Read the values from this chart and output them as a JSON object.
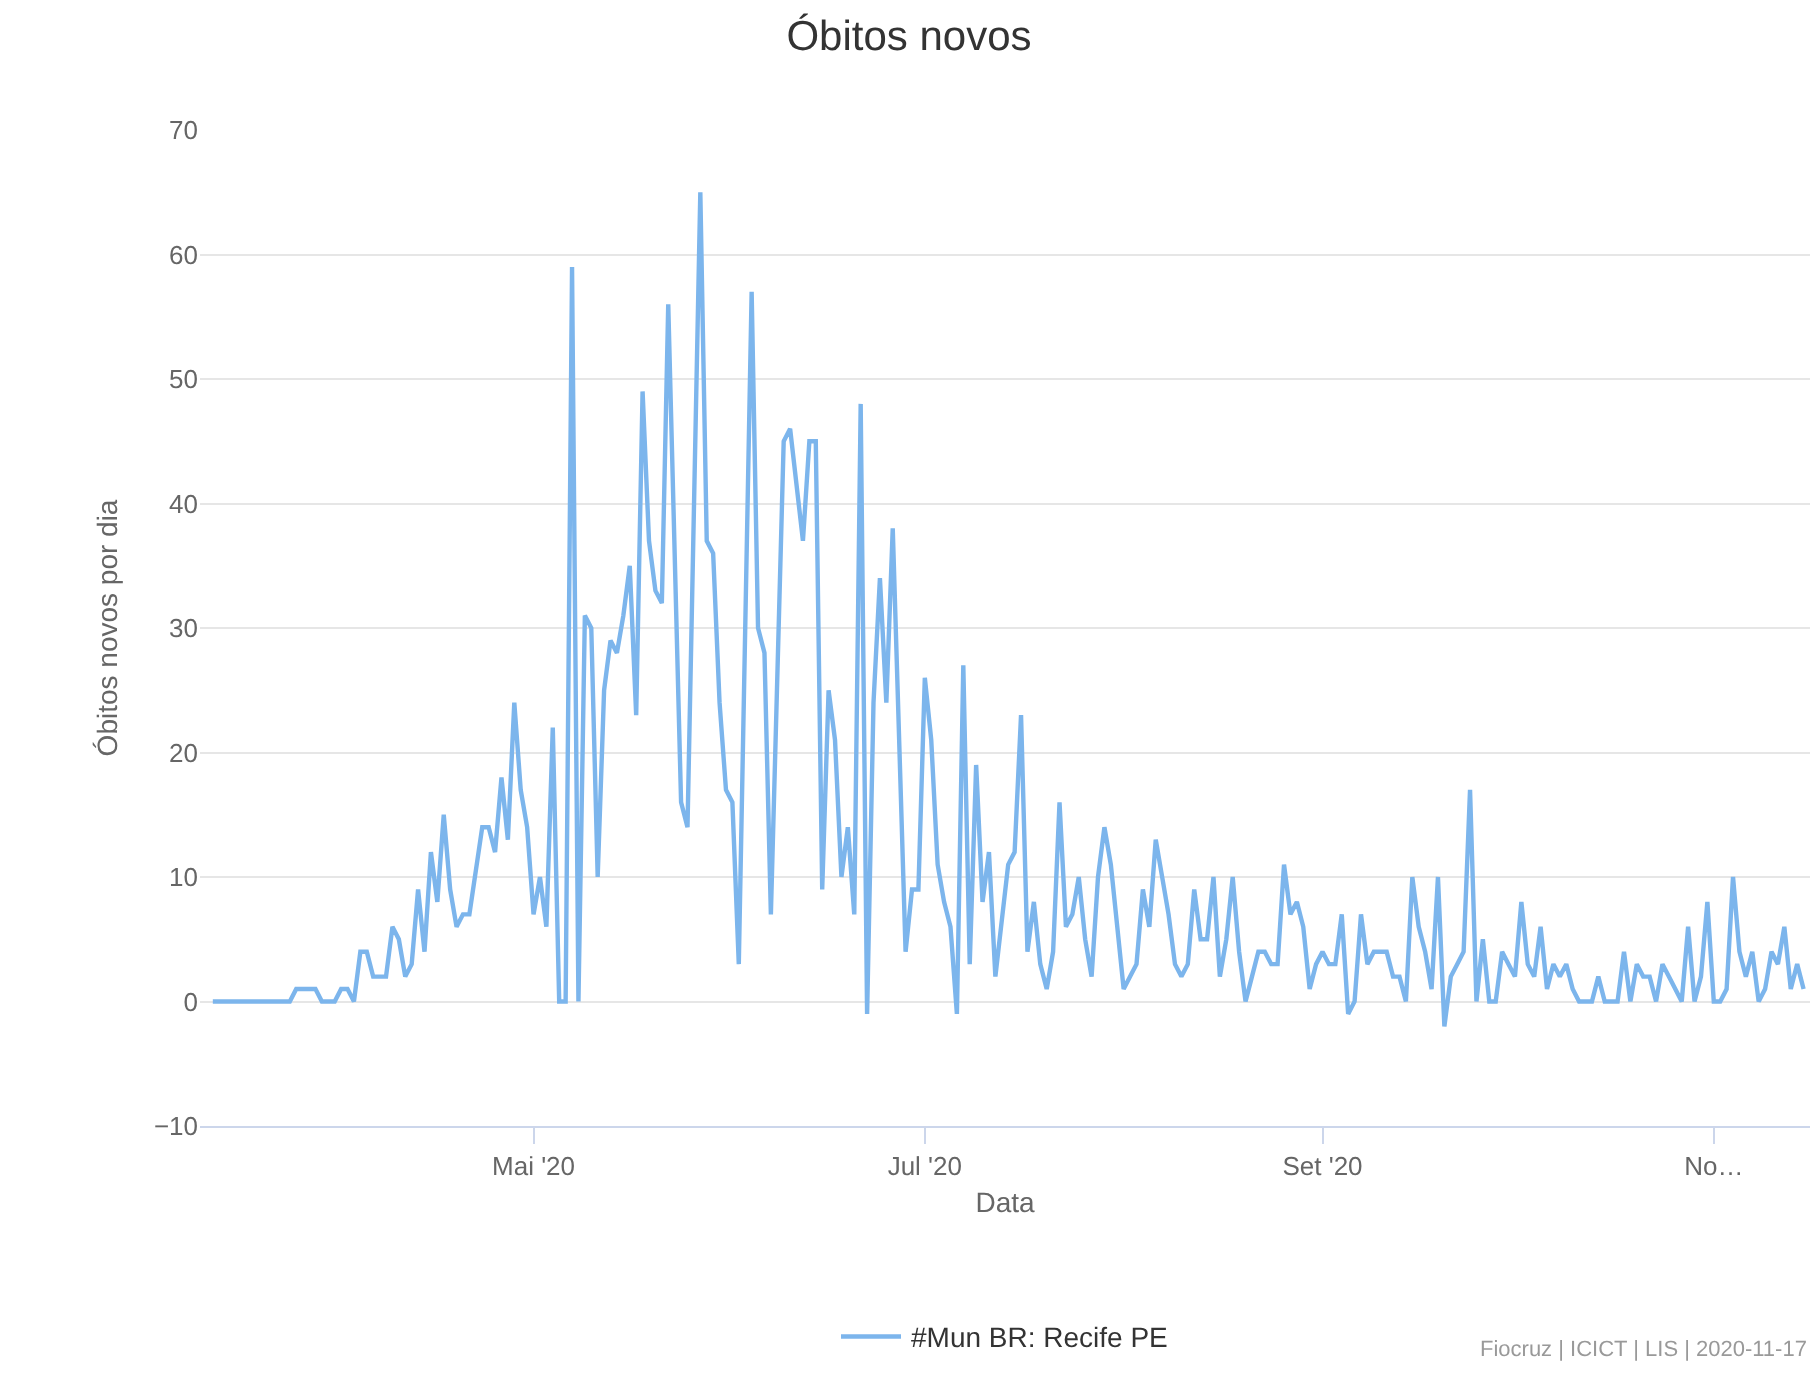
{
  "chart_data": {
    "type": "line",
    "title": "Óbitos novos",
    "xlabel": "Data",
    "ylabel": "Óbitos novos por dia",
    "xlim": [
      "2020-03-10",
      "2020-11-16"
    ],
    "xticks": [
      {
        "value": "2020-05-01",
        "label": "Mai '20"
      },
      {
        "value": "2020-07-01",
        "label": "Jul '20"
      },
      {
        "value": "2020-09-01",
        "label": "Set '20"
      },
      {
        "value": "2020-11-01",
        "label": "No…"
      }
    ],
    "ylim": [
      -10,
      70
    ],
    "yticks": [
      -10,
      0,
      10,
      20,
      30,
      40,
      50,
      60,
      70
    ],
    "grid": "y",
    "legend": "bottom",
    "marker": "none",
    "line_style": "solid",
    "annotations": [
      "Fiocruz | ICICT | LIS | 2020-11-17"
    ],
    "series": [
      {
        "name": "#Mun BR: Recife PE",
        "color": "#7cb5ec",
        "x": [
          "2020-03-12",
          "2020-03-24",
          "2020-03-25",
          "2020-03-28",
          "2020-03-29",
          "2020-03-31",
          "2020-04-01",
          "2020-04-02",
          "2020-04-03",
          "2020-04-04",
          "2020-04-05",
          "2020-04-06",
          "2020-04-08",
          "2020-04-09",
          "2020-04-10",
          "2020-04-11",
          "2020-04-12",
          "2020-04-13",
          "2020-04-14",
          "2020-04-15",
          "2020-04-16",
          "2020-04-17",
          "2020-04-18",
          "2020-04-19",
          "2020-04-20",
          "2020-04-21",
          "2020-04-23",
          "2020-04-24",
          "2020-04-25",
          "2020-04-26",
          "2020-04-27",
          "2020-04-28",
          "2020-04-29",
          "2020-04-30",
          "2020-05-01",
          "2020-05-02",
          "2020-05-03",
          "2020-05-04",
          "2020-05-05",
          "2020-05-06",
          "2020-05-07",
          "2020-05-08",
          "2020-05-09",
          "2020-05-10",
          "2020-05-11",
          "2020-05-12",
          "2020-05-13",
          "2020-05-14",
          "2020-05-15",
          "2020-05-16",
          "2020-05-17",
          "2020-05-18",
          "2020-05-19",
          "2020-05-20",
          "2020-05-21",
          "2020-05-22",
          "2020-05-24",
          "2020-05-25",
          "2020-05-27",
          "2020-05-28",
          "2020-05-29",
          "2020-05-30",
          "2020-05-31",
          "2020-06-01",
          "2020-06-02",
          "2020-06-04",
          "2020-06-05",
          "2020-06-06",
          "2020-06-07",
          "2020-06-09",
          "2020-06-10",
          "2020-06-12",
          "2020-06-13",
          "2020-06-14",
          "2020-06-15",
          "2020-06-16",
          "2020-06-17",
          "2020-06-18",
          "2020-06-19",
          "2020-06-20",
          "2020-06-21",
          "2020-06-22",
          "2020-06-23",
          "2020-06-24",
          "2020-06-25",
          "2020-06-26",
          "2020-06-28",
          "2020-06-29",
          "2020-06-30",
          "2020-07-01",
          "2020-07-02",
          "2020-07-03",
          "2020-07-04",
          "2020-07-05",
          "2020-07-06",
          "2020-07-07",
          "2020-07-08",
          "2020-07-09",
          "2020-07-10",
          "2020-07-11",
          "2020-07-12",
          "2020-07-14",
          "2020-07-15",
          "2020-07-16",
          "2020-07-17",
          "2020-07-18",
          "2020-07-19",
          "2020-07-20",
          "2020-07-21",
          "2020-07-22",
          "2020-07-23",
          "2020-07-24",
          "2020-07-25",
          "2020-07-26",
          "2020-07-27",
          "2020-07-28",
          "2020-07-29",
          "2020-07-30",
          "2020-07-31",
          "2020-08-01",
          "2020-08-02",
          "2020-08-03",
          "2020-08-04",
          "2020-08-05",
          "2020-08-06",
          "2020-08-07",
          "2020-08-08",
          "2020-08-09",
          "2020-08-10",
          "2020-08-11",
          "2020-08-12",
          "2020-08-13",
          "2020-08-14",
          "2020-08-15",
          "2020-08-16",
          "2020-08-17",
          "2020-08-18",
          "2020-08-19",
          "2020-08-20",
          "2020-08-21",
          "2020-08-22",
          "2020-08-23",
          "2020-08-24",
          "2020-08-25",
          "2020-08-26",
          "2020-08-27",
          "2020-08-28",
          "2020-08-29",
          "2020-08-30",
          "2020-08-31",
          "2020-09-01",
          "2020-09-02",
          "2020-09-03",
          "2020-09-04",
          "2020-09-05",
          "2020-09-06",
          "2020-09-07",
          "2020-09-08",
          "2020-09-09",
          "2020-09-10",
          "2020-09-11",
          "2020-09-12",
          "2020-09-13",
          "2020-09-14",
          "2020-09-15",
          "2020-09-16",
          "2020-09-17",
          "2020-09-18",
          "2020-09-19",
          "2020-09-20",
          "2020-09-21",
          "2020-09-22",
          "2020-09-23",
          "2020-09-24",
          "2020-09-25",
          "2020-09-26",
          "2020-09-27",
          "2020-09-28",
          "2020-09-29",
          "2020-09-30",
          "2020-10-01",
          "2020-10-02",
          "2020-10-03",
          "2020-10-04",
          "2020-10-05",
          "2020-10-06",
          "2020-10-07",
          "2020-10-08",
          "2020-10-09",
          "2020-10-10",
          "2020-10-11",
          "2020-10-12",
          "2020-10-13",
          "2020-10-14",
          "2020-10-15",
          "2020-10-16",
          "2020-10-17",
          "2020-10-18",
          "2020-10-19",
          "2020-10-20",
          "2020-10-21",
          "2020-10-22",
          "2020-10-23",
          "2020-10-24",
          "2020-10-25",
          "2020-10-26",
          "2020-10-27",
          "2020-10-28",
          "2020-10-29",
          "2020-10-30",
          "2020-10-31",
          "2020-11-01",
          "2020-11-02",
          "2020-11-03",
          "2020-11-04",
          "2020-11-05",
          "2020-11-06",
          "2020-11-07",
          "2020-11-08",
          "2020-11-09",
          "2020-11-10",
          "2020-11-11",
          "2020-11-12",
          "2020-11-13",
          "2020-11-14",
          "2020-11-15"
        ],
        "values": [
          0,
          0,
          1,
          1,
          0,
          0,
          1,
          1,
          0,
          4,
          4,
          2,
          2,
          6,
          5,
          2,
          3,
          9,
          4,
          12,
          8,
          15,
          9,
          6,
          7,
          7,
          14,
          14,
          12,
          18,
          13,
          24,
          17,
          14,
          7,
          10,
          6,
          22,
          0,
          0,
          59,
          0,
          31,
          30,
          10,
          25,
          29,
          28,
          31,
          35,
          23,
          49,
          37,
          33,
          32,
          56,
          16,
          14,
          65,
          37,
          36,
          24,
          17,
          16,
          3,
          57,
          30,
          28,
          7,
          45,
          46,
          37,
          45,
          45,
          9,
          25,
          21,
          10,
          14,
          7,
          48,
          -1,
          24,
          34,
          24,
          38,
          4,
          9,
          9,
          26,
          21,
          11,
          8,
          6,
          -1,
          27,
          3,
          19,
          8,
          12,
          2,
          11,
          12,
          23,
          4,
          8,
          3,
          1,
          4,
          16,
          6,
          7,
          10,
          5,
          2,
          10,
          14,
          11,
          6,
          1,
          2,
          3,
          9,
          6,
          13,
          10,
          7,
          3,
          2,
          3,
          9,
          5,
          5,
          10,
          2,
          5,
          10,
          4,
          0,
          2,
          4,
          4,
          3,
          3,
          11,
          7,
          8,
          6,
          1,
          3,
          4,
          3,
          3,
          7,
          -1,
          0,
          7,
          3,
          4,
          4,
          4,
          2,
          2,
          0,
          10,
          6,
          4,
          1,
          10,
          -2,
          2,
          3,
          4,
          17,
          0,
          5,
          0,
          0,
          4,
          3,
          2,
          8,
          3,
          2,
          6,
          1,
          3,
          2,
          3,
          1,
          0,
          0,
          0,
          2,
          0,
          0,
          0,
          4,
          0,
          3,
          2,
          2,
          0,
          3,
          2,
          1,
          0,
          6,
          0,
          2,
          8,
          0,
          0,
          1,
          10,
          4,
          2,
          4,
          0,
          1,
          4,
          3,
          6,
          1,
          3,
          1
        ]
      }
    ]
  }
}
